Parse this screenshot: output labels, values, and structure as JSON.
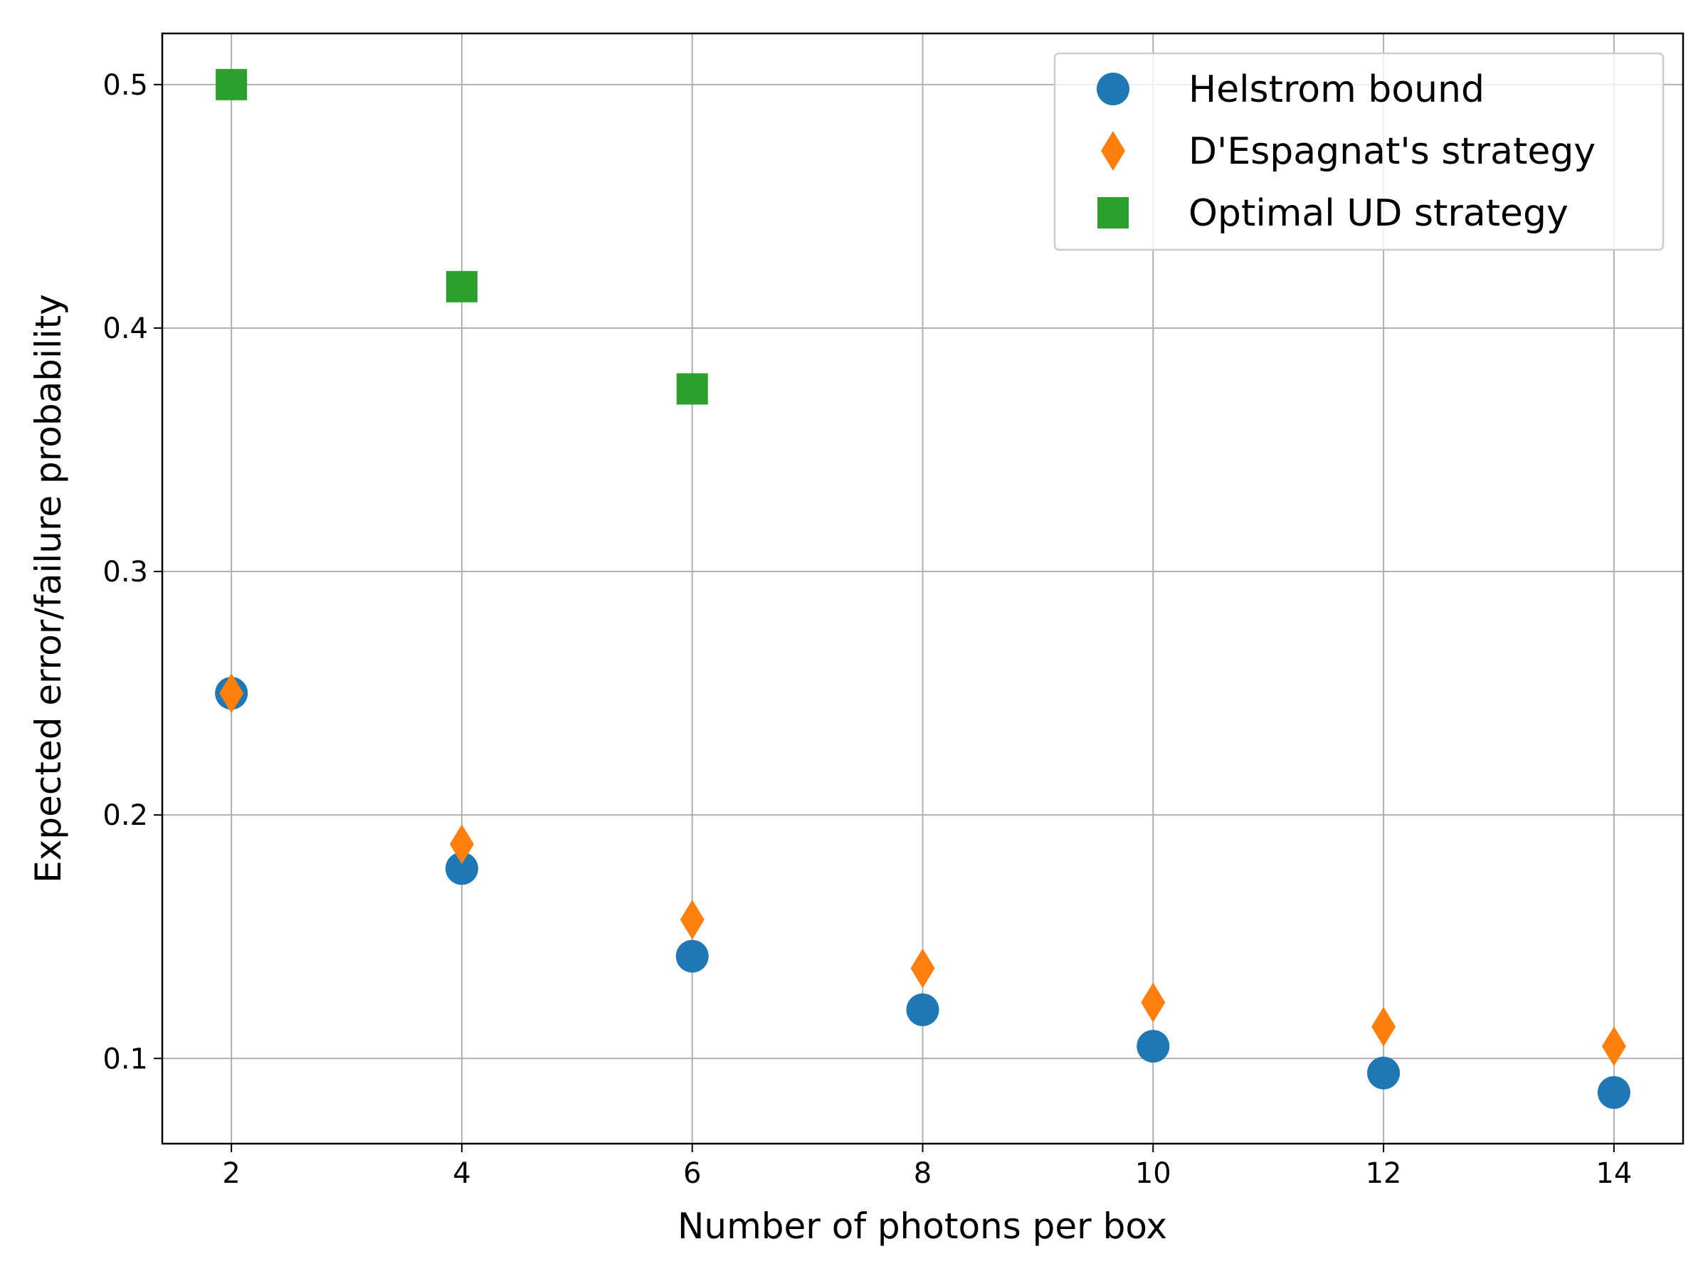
{
  "chart_data": {
    "type": "scatter",
    "title": "",
    "xlabel": "Number of photons per box",
    "ylabel": "Expected error/failure probability",
    "xlim": [
      1.4,
      14.6
    ],
    "ylim": [
      0.065,
      0.521
    ],
    "xticks": [
      2,
      4,
      6,
      8,
      10,
      12,
      14
    ],
    "yticks": [
      0.1,
      0.2,
      0.3,
      0.4,
      0.5
    ],
    "xtick_labels": [
      "2",
      "4",
      "6",
      "8",
      "10",
      "12",
      "14"
    ],
    "ytick_labels": [
      "0.1",
      "0.2",
      "0.3",
      "0.4",
      "0.5"
    ],
    "grid": true,
    "legend_position": "top-right",
    "series": [
      {
        "name": "Helstrom bound",
        "marker": "circle",
        "color": "#1f77b4",
        "x": [
          2,
          4,
          6,
          8,
          10,
          12,
          14
        ],
        "y": [
          0.25,
          0.178,
          0.142,
          0.12,
          0.105,
          0.094,
          0.086
        ]
      },
      {
        "name": "D'Espagnat's strategy",
        "marker": "diamond",
        "color": "#ff7f0e",
        "x": [
          2,
          4,
          6,
          8,
          10,
          12,
          14
        ],
        "y": [
          0.25,
          0.188,
          0.157,
          0.137,
          0.123,
          0.113,
          0.105
        ]
      },
      {
        "name": "Optimal UD strategy",
        "marker": "square",
        "color": "#2ca02c",
        "x": [
          2,
          4,
          6
        ],
        "y": [
          0.5,
          0.417,
          0.375
        ]
      }
    ]
  }
}
